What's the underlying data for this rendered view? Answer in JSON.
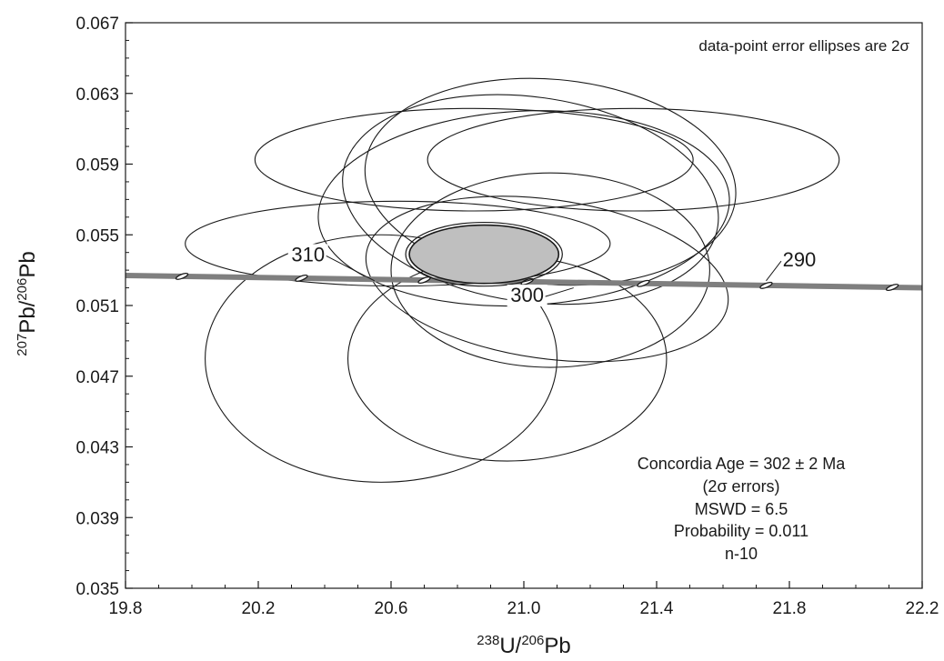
{
  "chart_data": {
    "type": "scatter",
    "subtype": "concordia-diagram",
    "xlim": [
      19.8,
      22.2
    ],
    "ylim": [
      0.035,
      0.067
    ],
    "x_ticks": [
      "19.8",
      "20.2",
      "20.6",
      "21.0",
      "21.4",
      "21.8",
      "22.2"
    ],
    "y_ticks": [
      "0.035",
      "0.039",
      "0.043",
      "0.047",
      "0.051",
      "0.055",
      "0.059",
      "0.063",
      "0.067"
    ],
    "xlabel": {
      "sup1": "238",
      "base1": "U/",
      "sup2": "206",
      "base2": "Pb"
    },
    "ylabel": {
      "sup1": "207",
      "base1": "Pb/",
      "sup2": "206",
      "base2": "Pb"
    },
    "annotation": "data-point error ellipses are 2σ",
    "stats": [
      "Concordia Age = 302 ± 2 Ma",
      "(2σ errors)",
      "MSWD = 6.5",
      "Probability = 0.011",
      "n-10"
    ],
    "concordia_curve": {
      "color": "#7f7f7f",
      "points": [
        [
          19.8,
          0.0527
        ],
        [
          22.2,
          0.052
        ]
      ],
      "age_ticks_x": [
        19.97,
        20.33,
        20.7,
        21.01,
        21.36,
        21.73,
        22.11
      ]
    },
    "age_labels": [
      {
        "text": "310",
        "x": 20.35,
        "y": 0.0535,
        "tick_x": 20.55,
        "tick_y": 0.0524
      },
      {
        "text": "300",
        "x": 21.01,
        "y": 0.0512,
        "tick_x": 21.15,
        "tick_y": 0.052
      },
      {
        "text": "290",
        "x": 21.83,
        "y": 0.0532,
        "tick_x": 21.73,
        "tick_y": 0.0524
      }
    ],
    "ellipses": [
      {
        "cx": 20.85,
        "cy": 0.05925,
        "rx": 0.66,
        "ry": 0.0029,
        "angle": 0
      },
      {
        "cx": 21.33,
        "cy": 0.05925,
        "rx": 0.62,
        "ry": 0.0029,
        "angle": 0
      },
      {
        "cx": 21.08,
        "cy": 0.058,
        "rx": 0.56,
        "ry": 0.0058,
        "angle": 5
      },
      {
        "cx": 21.02,
        "cy": 0.057,
        "rx": 0.57,
        "ry": 0.0058,
        "angle": 8
      },
      {
        "cx": 21.0,
        "cy": 0.0565,
        "rx": 0.62,
        "ry": 0.0055,
        "angle": -3
      },
      {
        "cx": 20.62,
        "cy": 0.0545,
        "rx": 0.64,
        "ry": 0.0024,
        "angle": 0
      },
      {
        "cx": 21.08,
        "cy": 0.053,
        "rx": 0.48,
        "ry": 0.0055,
        "angle": 0
      },
      {
        "cx": 21.07,
        "cy": 0.0525,
        "rx": 0.55,
        "ry": 0.0045,
        "angle": 8
      },
      {
        "cx": 20.57,
        "cy": 0.048,
        "rx": 0.53,
        "ry": 0.007,
        "angle": 0
      },
      {
        "cx": 20.95,
        "cy": 0.048,
        "rx": 0.48,
        "ry": 0.0058,
        "angle": 0
      }
    ],
    "mean_ellipse": {
      "cx": 20.88,
      "cy": 0.0539,
      "rx": 0.225,
      "ry": 0.00165,
      "fill": "#bfbfbf"
    }
  }
}
